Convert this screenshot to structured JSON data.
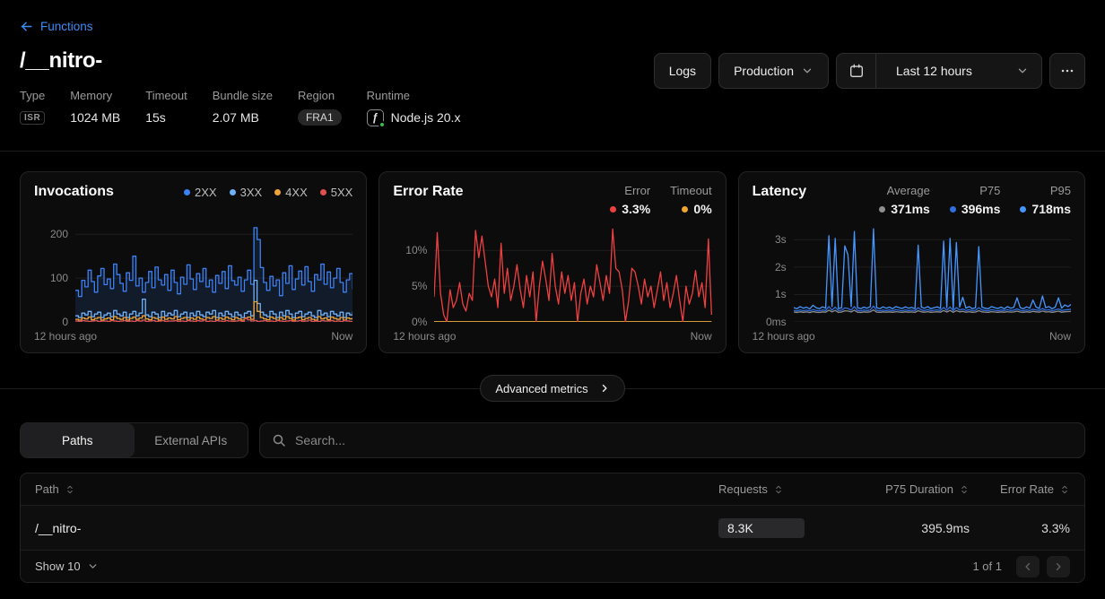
{
  "header": {
    "back_label": "Functions",
    "title": "/__nitro-",
    "meta": {
      "type_label": "Type",
      "type_value": "ISR",
      "memory_label": "Memory",
      "memory_value": "1024 MB",
      "timeout_label": "Timeout",
      "timeout_value": "15s",
      "bundle_label": "Bundle size",
      "bundle_value": "2.07 MB",
      "region_label": "Region",
      "region_value": "FRA1",
      "runtime_label": "Runtime",
      "runtime_value": "Node.js 20.x"
    },
    "actions": {
      "logs": "Logs",
      "environment": "Production",
      "time_range": "Last 12 hours",
      "more_icon": "ellipsis-horizontal"
    }
  },
  "advanced_metrics_label": "Advanced metrics",
  "tabs": {
    "paths": "Paths",
    "external": "External APIs"
  },
  "search": {
    "placeholder": "Search..."
  },
  "table": {
    "columns": {
      "path": "Path",
      "requests": "Requests",
      "p75": "P75 Duration",
      "error_rate": "Error Rate"
    },
    "row": {
      "path": "/__nitro-",
      "requests": "8.3K",
      "p75": "395.9ms",
      "error_rate": "3.3%"
    },
    "footer": {
      "show": "Show 10",
      "page_info": "1 of 1"
    }
  },
  "chart_data": [
    {
      "type": "line",
      "step": true,
      "title": "Invocations",
      "xlabels": {
        "left": "12 hours ago",
        "right": "Now"
      },
      "ylim": [
        0,
        225
      ],
      "yticks": [
        {
          "value": 0,
          "label": "0"
        },
        {
          "value": 100,
          "label": "100"
        },
        {
          "value": 200,
          "label": "200"
        }
      ],
      "legend": [
        {
          "label": "2XX",
          "color": "#3b82f6"
        },
        {
          "label": "3XX",
          "color": "#70b1f7"
        },
        {
          "label": "4XX",
          "color": "#eda338"
        },
        {
          "label": "5XX",
          "color": "#e0514e"
        }
      ],
      "series": [
        {
          "name": "2XX",
          "color": "#3b82f6",
          "fill": "rgba(59,130,246,0.13)",
          "values": [
            72,
            58,
            95,
            80,
            118,
            92,
            68,
            105,
            122,
            85,
            98,
            76,
            132,
            108,
            88,
            70,
            112,
            95,
            150,
            82,
            100,
            68,
            90,
            115,
            78,
            125,
            96,
            84,
            108,
            72,
            118,
            90,
            64,
            102,
            86,
            130,
            98,
            74,
            110,
            92,
            122,
            80,
            96,
            68,
            106,
            88,
            115,
            76,
            128,
            94,
            84,
            102,
            70,
            96,
            118,
            86,
            215,
            188,
            124,
            90,
            72,
            104,
            82,
            96,
            60,
            112,
            88,
            128,
            74,
            98,
            116,
            84,
            126,
            92,
            70,
            108,
            96,
            132,
            86,
            114,
            78,
            100,
            122,
            90,
            68,
            96,
            110,
            74
          ]
        },
        {
          "name": "3XX",
          "color": "#70b1f7",
          "values": [
            14,
            10,
            20,
            16,
            24,
            12,
            18,
            22,
            10,
            16,
            20,
            12,
            26,
            18,
            14,
            22,
            10,
            18,
            24,
            14,
            20,
            52,
            16,
            12,
            22,
            18,
            10,
            24,
            14,
            20,
            16,
            26,
            12,
            18,
            22,
            10,
            20,
            14,
            24,
            16,
            12,
            22,
            18,
            26,
            10,
            20,
            14,
            24,
            18,
            12,
            22,
            16,
            10,
            20,
            24,
            14,
            95,
            42,
            22,
            16,
            12,
            24,
            18,
            10,
            22,
            14,
            26,
            18,
            10,
            20,
            24,
            12,
            18,
            22,
            14,
            10,
            26,
            16,
            20,
            12,
            24,
            18,
            14,
            22,
            10,
            20,
            16,
            24
          ]
        },
        {
          "name": "4XX",
          "color": "#eda338",
          "values": [
            6,
            4,
            9,
            7,
            11,
            5,
            8,
            10,
            4,
            7,
            9,
            5,
            12,
            8,
            6,
            10,
            4,
            8,
            11,
            6,
            9,
            14,
            7,
            5,
            10,
            8,
            4,
            11,
            6,
            9,
            7,
            12,
            5,
            8,
            10,
            4,
            9,
            6,
            11,
            7,
            5,
            10,
            8,
            12,
            4,
            9,
            6,
            11,
            8,
            5,
            10,
            7,
            4,
            9,
            11,
            6,
            46,
            24,
            10,
            7,
            5,
            11,
            8,
            4,
            10,
            6,
            12,
            8,
            4,
            9,
            11,
            5,
            8,
            10,
            6,
            4,
            12,
            7,
            9,
            5,
            11,
            8,
            6,
            10,
            4,
            9,
            7,
            11
          ]
        },
        {
          "name": "5XX",
          "color": "#e0514e",
          "values": [
            2,
            1,
            3,
            2,
            1,
            2,
            3,
            1,
            2,
            2,
            1,
            3,
            2,
            1,
            2,
            3,
            1,
            2,
            1,
            3,
            2,
            4,
            1,
            2,
            3,
            1,
            2,
            3,
            1,
            2,
            2,
            3,
            1,
            2,
            1,
            3,
            2,
            1,
            3,
            2,
            4,
            1,
            2,
            1,
            3,
            2,
            1,
            3,
            2,
            1,
            2,
            3,
            1,
            8,
            5,
            2,
            3,
            1,
            2,
            3,
            1,
            2,
            1,
            3,
            2,
            1,
            2,
            3,
            1,
            2,
            3,
            1,
            2,
            4,
            1,
            2,
            1,
            3,
            2,
            2,
            3,
            1,
            2,
            1,
            3,
            2,
            1,
            2
          ]
        }
      ]
    },
    {
      "type": "line",
      "step": false,
      "title": "Error Rate",
      "xlabels": {
        "left": "12 hours ago",
        "right": "Now"
      },
      "ylim": [
        0,
        13.8
      ],
      "yticks": [
        {
          "value": 0,
          "label": "0%"
        },
        {
          "value": 5,
          "label": "5%"
        },
        {
          "value": 10,
          "label": "10%"
        }
      ],
      "stats": [
        {
          "label": "Error",
          "value": "3.3%",
          "color": "#ef4040"
        },
        {
          "label": "Timeout",
          "value": "0%",
          "color": "#f0a432"
        }
      ],
      "series": [
        {
          "name": "Timeout",
          "color": "#d49a3a",
          "width": 2,
          "values": [
            0,
            0
          ]
        },
        {
          "name": "Error",
          "color": "#ef4040",
          "values": [
            3.5,
            12.5,
            4,
            1,
            0,
            4.5,
            2,
            3,
            5.5,
            2.5,
            1.5,
            4,
            3,
            12.8,
            9,
            12,
            8.5,
            5,
            3.5,
            6,
            2,
            11,
            4,
            7.5,
            3,
            5,
            8,
            4.5,
            2,
            6.5,
            3.5,
            7,
            0,
            5,
            8.5,
            6,
            3,
            9.6,
            5,
            2.5,
            7,
            4,
            6.5,
            3,
            5.5,
            0,
            4,
            6,
            2.5,
            5,
            3.5,
            8,
            5.5,
            3,
            6.5,
            4,
            13,
            7.5,
            7,
            4.5,
            0,
            3,
            7.5,
            7,
            5,
            2.5,
            6,
            3.5,
            5,
            2,
            4.5,
            7,
            3,
            5.5,
            2,
            4,
            6.5,
            3,
            0,
            5,
            2.5,
            4,
            7.2,
            3.5,
            5.5,
            2,
            11.6,
            1
          ]
        }
      ]
    },
    {
      "type": "line",
      "step": false,
      "title": "Latency",
      "xlabels": {
        "left": "12 hours ago",
        "right": "Now"
      },
      "ylim": [
        0,
        3600
      ],
      "yticks": [
        {
          "value": 0,
          "label": "0ms"
        },
        {
          "value": 1000,
          "label": "1s"
        },
        {
          "value": 2000,
          "label": "2s"
        },
        {
          "value": 3000,
          "label": "3s"
        }
      ],
      "stats": [
        {
          "label": "Average",
          "value": "371ms",
          "color": "#8f8f8f"
        },
        {
          "label": "P75",
          "value": "396ms",
          "color": "#2f6fe0"
        },
        {
          "label": "P95",
          "value": "718ms",
          "color": "#4596ff"
        }
      ],
      "series": [
        {
          "name": "Average",
          "color": "#8f8f8f",
          "values": [
            360,
            345,
            370,
            350,
            365,
            340,
            375,
            355,
            345,
            368,
            352,
            430,
            365,
            420,
            348,
            360,
            405,
            395,
            362,
            430,
            355,
            345,
            368,
            352,
            370,
            440,
            358,
            346,
            366,
            352,
            368,
            350,
            372,
            360,
            348,
            370,
            354,
            364,
            348,
            410,
            368,
            354,
            372,
            350,
            360,
            370,
            352,
            415,
            360,
            420,
            350,
            412,
            368,
            385,
            354,
            372,
            350,
            360,
            408,
            368,
            356,
            346,
            372,
            360,
            350,
            368,
            352,
            372,
            356,
            364,
            392,
            360,
            350,
            370,
            354,
            385,
            368,
            356,
            398,
            360,
            372,
            350,
            366,
            392,
            354,
            370,
            375,
            380
          ]
        },
        {
          "name": "P75",
          "color": "#2f6fe0",
          "values": [
            420,
            400,
            440,
            410,
            430,
            400,
            450,
            420,
            405,
            435,
            415,
            560,
            430,
            540,
            410,
            425,
            510,
            490,
            430,
            560,
            420,
            405,
            435,
            415,
            440,
            580,
            420,
            405,
            430,
            415,
            435,
            410,
            445,
            425,
            405,
            440,
            415,
            430,
            410,
            520,
            435,
            415,
            445,
            410,
            425,
            440,
            415,
            530,
            425,
            545,
            410,
            525,
            435,
            470,
            415,
            445,
            410,
            425,
            520,
            435,
            420,
            405,
            445,
            425,
            410,
            435,
            415,
            445,
            420,
            430,
            475,
            425,
            410,
            440,
            415,
            460,
            435,
            420,
            490,
            425,
            445,
            410,
            435,
            475,
            415,
            440,
            450,
            460
          ]
        },
        {
          "name": "P95",
          "color": "#4596ff",
          "values": [
            520,
            480,
            560,
            500,
            540,
            470,
            610,
            520,
            480,
            550,
            500,
            3150,
            560,
            3050,
            480,
            520,
            2780,
            2450,
            560,
            3300,
            520,
            480,
            540,
            500,
            560,
            3400,
            520,
            480,
            550,
            500,
            540,
            480,
            560,
            520,
            490,
            550,
            500,
            530,
            480,
            2800,
            540,
            500,
            560,
            480,
            520,
            550,
            490,
            2950,
            520,
            3050,
            480,
            2900,
            540,
            900,
            500,
            560,
            480,
            520,
            2750,
            540,
            500,
            480,
            560,
            520,
            490,
            540,
            480,
            560,
            500,
            530,
            880,
            520,
            480,
            550,
            500,
            800,
            540,
            490,
            950,
            520,
            560,
            480,
            540,
            880,
            500,
            620,
            560,
            640
          ]
        }
      ]
    }
  ]
}
